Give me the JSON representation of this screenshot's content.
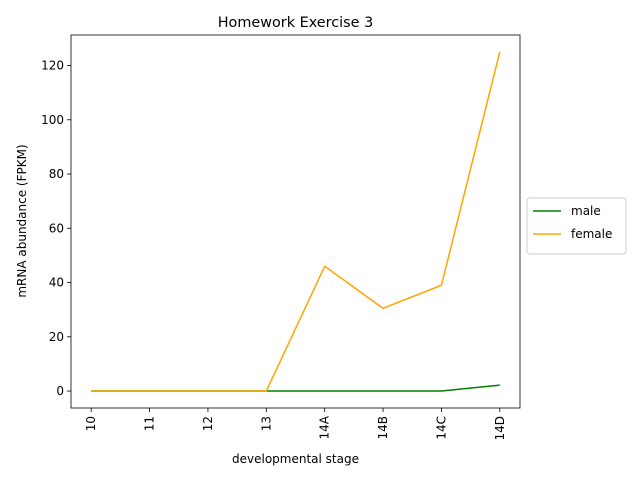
{
  "chart_data": {
    "type": "line",
    "title": "Homework Exercise 3",
    "xlabel": "developmental stage",
    "ylabel": "mRNA abundance (FPKM)",
    "categories": [
      "10",
      "11",
      "12",
      "13",
      "14A",
      "14B",
      "14C",
      "14D"
    ],
    "yticks": [
      0,
      20,
      40,
      60,
      80,
      100,
      120
    ],
    "ylim": [
      -6.25,
      131.25
    ],
    "grid": false,
    "legend_position": "center-right-outside",
    "series": [
      {
        "name": "male",
        "color": "#008000",
        "values": [
          0,
          0,
          0,
          0,
          0,
          0,
          0,
          2.2
        ]
      },
      {
        "name": "female",
        "color": "#FFA500",
        "values": [
          0,
          0,
          0,
          0,
          46,
          30.5,
          39,
          125
        ]
      }
    ]
  }
}
